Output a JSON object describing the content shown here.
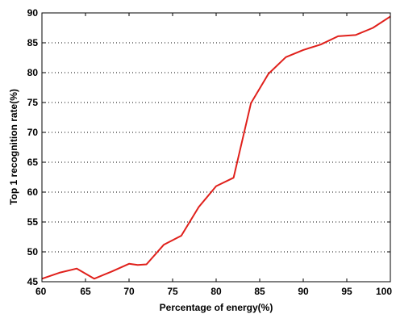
{
  "chart_data": {
    "type": "line",
    "xlabel": "Percentage of energy(%)",
    "ylabel": "Top 1 recognition rate(%)",
    "xlim": [
      60,
      100
    ],
    "ylim": [
      45,
      90
    ],
    "xticks": [
      60,
      65,
      70,
      75,
      80,
      85,
      90,
      95,
      100
    ],
    "yticks": [
      45,
      50,
      55,
      60,
      65,
      70,
      75,
      80,
      85,
      90
    ],
    "grid": "horizontal-dotted",
    "line_color": "#e0201b",
    "series": [
      {
        "x": [
          60,
          62,
          64,
          66,
          68,
          70,
          71,
          72,
          74,
          76,
          78,
          80,
          82,
          84,
          86,
          88,
          90,
          92,
          94,
          96,
          98,
          100
        ],
        "y": [
          45.5,
          46.5,
          47.2,
          45.5,
          46.7,
          48.0,
          47.8,
          47.9,
          51.2,
          52.7,
          57.5,
          61.0,
          62.4,
          74.9,
          79.8,
          82.6,
          83.8,
          84.7,
          86.1,
          86.3,
          87.5,
          89.4
        ]
      }
    ]
  }
}
